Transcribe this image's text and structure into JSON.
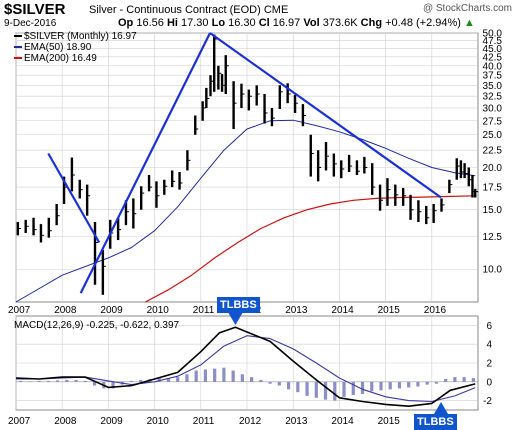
{
  "header": {
    "symbol": "$SILVER",
    "description": "Silver - Continuous Contract (EOD)",
    "exchange": "CME",
    "brand": "@ StockCharts.com",
    "date": "9-Dec-2016",
    "open_label": "Op",
    "open": "16.56",
    "high_label": "Hi",
    "high": "17.30",
    "low_label": "Lo",
    "low": "16.30",
    "close_label": "Cl",
    "close": "16.97",
    "vol_label": "Vol",
    "vol": "373.6K",
    "chg_label": "Chg",
    "chg": "+0.48 (+2.94%)",
    "chg_arrow": "▲"
  },
  "legend": {
    "price": "$SILVER (Monthly) 16.97",
    "ema50": "EMA(50) 18.90",
    "ema200": "EMA(200) 16.49"
  },
  "colors": {
    "price": "#000000",
    "ema50": "#1f2a9e",
    "ema200": "#cc1111",
    "trendline": "#1a2fd6",
    "macd": "#000000",
    "signal": "#3a3aa0",
    "histogram": "#8b8fc8",
    "grid": "#d0d0d0",
    "badge": "#1155cc"
  },
  "macd_label": {
    "text": "MACD(12,26,9) -0.225, -0.622, 0.397",
    "macd_value": "-0.225",
    "signal_value": "-0.622",
    "hist_value": "0.397"
  },
  "annotations": [
    {
      "text": "TLBBS",
      "points_to_year": 2011.75
    },
    {
      "text": "TLBBS",
      "points_to_year": 2016.2
    }
  ],
  "chart_data": [
    {
      "type": "line",
      "title": "$SILVER Silver - Continuous Contract (EOD)",
      "scale": "log",
      "ylim": [
        8,
        50
      ],
      "xlim": [
        2007.0,
        2017.0
      ],
      "y_ticks": [
        10.0,
        12.5,
        15.0,
        17.5,
        20.0,
        22.5,
        25.0,
        27.5,
        30.0,
        32.5,
        35.0,
        37.5,
        40.0,
        42.5,
        45.0,
        47.5,
        50.0
      ],
      "x_ticks": [
        "2007",
        "2008",
        "2009",
        "2010",
        "2011",
        "2012",
        "2013",
        "2014",
        "2015",
        "2016"
      ],
      "grid": true,
      "legend_position": "top-left",
      "series": [
        {
          "name": "$SILVER (Monthly)",
          "style": "hlc-bars",
          "x": [
            2007.04,
            2007.21,
            2007.38,
            2007.54,
            2007.71,
            2007.88,
            2008.04,
            2008.21,
            2008.38,
            2008.54,
            2008.71,
            2008.88,
            2009.04,
            2009.21,
            2009.38,
            2009.54,
            2009.71,
            2009.88,
            2010.04,
            2010.21,
            2010.38,
            2010.54,
            2010.71,
            2010.88,
            2011.04,
            2011.12,
            2011.21,
            2011.29,
            2011.38,
            2011.46,
            2011.54,
            2011.71,
            2011.88,
            2012.04,
            2012.21,
            2012.38,
            2012.54,
            2012.71,
            2012.88,
            2013.04,
            2013.21,
            2013.38,
            2013.54,
            2013.71,
            2013.88,
            2014.04,
            2014.21,
            2014.38,
            2014.54,
            2014.71,
            2014.88,
            2015.04,
            2015.21,
            2015.38,
            2015.54,
            2015.71,
            2015.88,
            2016.04,
            2016.21,
            2016.38,
            2016.54,
            2016.63,
            2016.71,
            2016.8,
            2016.88,
            2016.94
          ],
          "values": [
            13.2,
            13.4,
            13.1,
            12.6,
            13.0,
            14.4,
            17.5,
            19.0,
            17.2,
            16.5,
            12.0,
            10.2,
            12.8,
            13.1,
            14.8,
            14.6,
            16.8,
            17.5,
            16.5,
            17.6,
            18.2,
            18.0,
            21.0,
            26.0,
            30.0,
            32.0,
            36.0,
            48.0,
            38.0,
            35.0,
            40.0,
            31.0,
            33.0,
            32.5,
            33.0,
            29.0,
            28.0,
            33.5,
            33.0,
            31.0,
            28.5,
            22.0,
            20.0,
            21.6,
            20.5,
            19.8,
            20.2,
            19.5,
            20.0,
            17.5,
            16.0,
            17.2,
            16.6,
            16.5,
            15.0,
            14.8,
            14.2,
            14.9,
            15.5,
            17.8,
            20.2,
            19.4,
            19.2,
            18.4,
            17.0,
            16.97
          ],
          "high": [
            13.8,
            14.0,
            14.2,
            13.6,
            14.2,
            15.6,
            18.8,
            21.4,
            18.4,
            17.8,
            13.8,
            11.4,
            14.0,
            14.2,
            16.0,
            16.2,
            17.6,
            19.0,
            18.2,
            18.4,
            19.6,
            19.4,
            22.5,
            28.5,
            31.4,
            34.4,
            37.5,
            49.5,
            40.0,
            37.8,
            43.0,
            36.0,
            35.4,
            34.0,
            35.0,
            33.0,
            30.0,
            35.0,
            35.5,
            32.8,
            30.8,
            25.0,
            22.5,
            23.8,
            22.0,
            21.0,
            21.8,
            21.0,
            21.5,
            20.6,
            17.8,
            18.6,
            17.8,
            17.4,
            16.6,
            16.0,
            15.4,
            15.6,
            16.2,
            18.4,
            21.3,
            21.0,
            20.6,
            20.0,
            19.0,
            17.3
          ],
          "low": [
            12.6,
            12.8,
            12.6,
            12.0,
            12.4,
            13.5,
            15.6,
            17.0,
            16.2,
            14.4,
            9.0,
            8.4,
            11.5,
            12.2,
            13.5,
            13.2,
            15.0,
            17.0,
            15.2,
            16.6,
            17.5,
            17.2,
            19.6,
            25.0,
            27.5,
            30.0,
            32.5,
            33.5,
            34.0,
            33.5,
            33.0,
            26.0,
            30.0,
            29.5,
            30.5,
            27.0,
            26.5,
            29.8,
            31.0,
            29.0,
            26.5,
            18.8,
            18.2,
            19.6,
            18.8,
            18.6,
            19.4,
            19.0,
            19.2,
            16.6,
            14.9,
            15.4,
            15.4,
            15.4,
            14.0,
            13.8,
            13.6,
            13.7,
            14.8,
            16.8,
            18.4,
            18.6,
            18.6,
            17.6,
            16.3,
            16.3
          ]
        },
        {
          "name": "EMA(50)",
          "x": [
            2007.0,
            2008.0,
            2009.0,
            2009.5,
            2010.0,
            2010.5,
            2011.0,
            2011.5,
            2012.0,
            2012.5,
            2013.0,
            2013.5,
            2014.0,
            2014.5,
            2015.0,
            2015.5,
            2016.0,
            2016.5,
            2016.94
          ],
          "values": [
            8.0,
            9.6,
            10.8,
            11.6,
            13.0,
            15.3,
            18.6,
            22.5,
            26.0,
            27.5,
            27.6,
            26.6,
            25.5,
            24.2,
            22.8,
            21.3,
            20.0,
            19.3,
            18.9
          ]
        },
        {
          "name": "EMA(200)",
          "x": [
            2009.8,
            2010.3,
            2010.8,
            2011.3,
            2011.8,
            2012.3,
            2012.8,
            2013.3,
            2013.8,
            2014.3,
            2014.8,
            2015.3,
            2015.8,
            2016.3,
            2016.94
          ],
          "values": [
            8.0,
            8.7,
            9.6,
            10.8,
            12.0,
            13.2,
            14.2,
            15.0,
            15.6,
            16.0,
            16.2,
            16.3,
            16.35,
            16.42,
            16.49
          ]
        },
        {
          "name": "Trendline 1",
          "x": [
            2007.7,
            2008.8
          ],
          "values": [
            22.0,
            12.0
          ]
        },
        {
          "name": "Trendline 2",
          "x": [
            2008.4,
            2011.2
          ],
          "values": [
            8.5,
            50.0
          ]
        },
        {
          "name": "Trendline 3",
          "x": [
            2011.2,
            2016.2
          ],
          "values": [
            50.0,
            16.3
          ]
        }
      ]
    },
    {
      "type": "line",
      "title": "MACD(12,26,9)",
      "ylim": [
        -3,
        7
      ],
      "xlim": [
        2007.0,
        2017.0
      ],
      "y_ticks": [
        -2,
        0,
        2,
        4,
        6
      ],
      "x_ticks": [
        "2007",
        "2008",
        "2009",
        "2010",
        "2011",
        "2012",
        "2013",
        "2014",
        "2015",
        "2016"
      ],
      "grid": true,
      "series": [
        {
          "name": "MACD",
          "x": [
            2007.0,
            2007.5,
            2008.0,
            2008.5,
            2009.0,
            2009.5,
            2010.0,
            2010.5,
            2011.0,
            2011.4,
            2011.75,
            2012.0,
            2012.5,
            2013.0,
            2013.5,
            2014.0,
            2014.5,
            2015.0,
            2015.5,
            2016.0,
            2016.4,
            2016.94
          ],
          "values": [
            0.4,
            0.3,
            0.5,
            0.5,
            -0.6,
            -0.4,
            0.3,
            1.0,
            3.2,
            5.2,
            5.8,
            5.3,
            4.3,
            2.2,
            0.2,
            -1.7,
            -2.1,
            -2.4,
            -2.6,
            -2.3,
            -0.9,
            -0.225
          ]
        },
        {
          "name": "Signal",
          "x": [
            2007.0,
            2007.5,
            2008.0,
            2008.5,
            2009.0,
            2009.5,
            2010.0,
            2010.5,
            2011.0,
            2011.5,
            2012.0,
            2012.5,
            2013.0,
            2013.5,
            2014.0,
            2014.5,
            2015.0,
            2015.5,
            2016.0,
            2016.5,
            2016.94
          ],
          "values": [
            0.3,
            0.3,
            0.4,
            0.5,
            0.1,
            -0.3,
            0.0,
            0.6,
            1.8,
            3.8,
            4.9,
            4.6,
            3.5,
            2.0,
            0.4,
            -0.8,
            -1.6,
            -2.0,
            -2.1,
            -1.5,
            -0.622
          ]
        },
        {
          "name": "Histogram",
          "style": "bars",
          "x": [
            2007.1,
            2007.3,
            2007.5,
            2007.7,
            2007.9,
            2008.1,
            2008.3,
            2008.5,
            2008.7,
            2008.9,
            2009.1,
            2009.3,
            2009.5,
            2009.7,
            2009.9,
            2010.1,
            2010.3,
            2010.5,
            2010.7,
            2010.9,
            2011.1,
            2011.3,
            2011.5,
            2011.7,
            2011.9,
            2012.1,
            2012.3,
            2012.5,
            2012.7,
            2012.9,
            2013.1,
            2013.3,
            2013.5,
            2013.7,
            2013.9,
            2014.1,
            2014.3,
            2014.5,
            2014.7,
            2014.9,
            2015.1,
            2015.3,
            2015.5,
            2015.7,
            2015.9,
            2016.1,
            2016.3,
            2016.5,
            2016.7,
            2016.9
          ],
          "values": [
            0.1,
            0.05,
            0.1,
            0.1,
            0.15,
            0.2,
            0.2,
            0.1,
            -0.4,
            -0.7,
            -0.7,
            -0.3,
            0.1,
            0.2,
            0.3,
            0.4,
            0.4,
            0.5,
            0.8,
            1.2,
            1.3,
            1.4,
            1.5,
            1.2,
            0.8,
            0.5,
            0.2,
            -0.2,
            -0.4,
            -0.8,
            -1.1,
            -1.5,
            -1.7,
            -1.9,
            -2.0,
            -1.6,
            -1.4,
            -1.3,
            -1.0,
            -0.9,
            -0.8,
            -0.7,
            -0.6,
            -0.5,
            -0.3,
            -0.2,
            0.3,
            0.5,
            0.5,
            0.4
          ]
        }
      ]
    }
  ]
}
